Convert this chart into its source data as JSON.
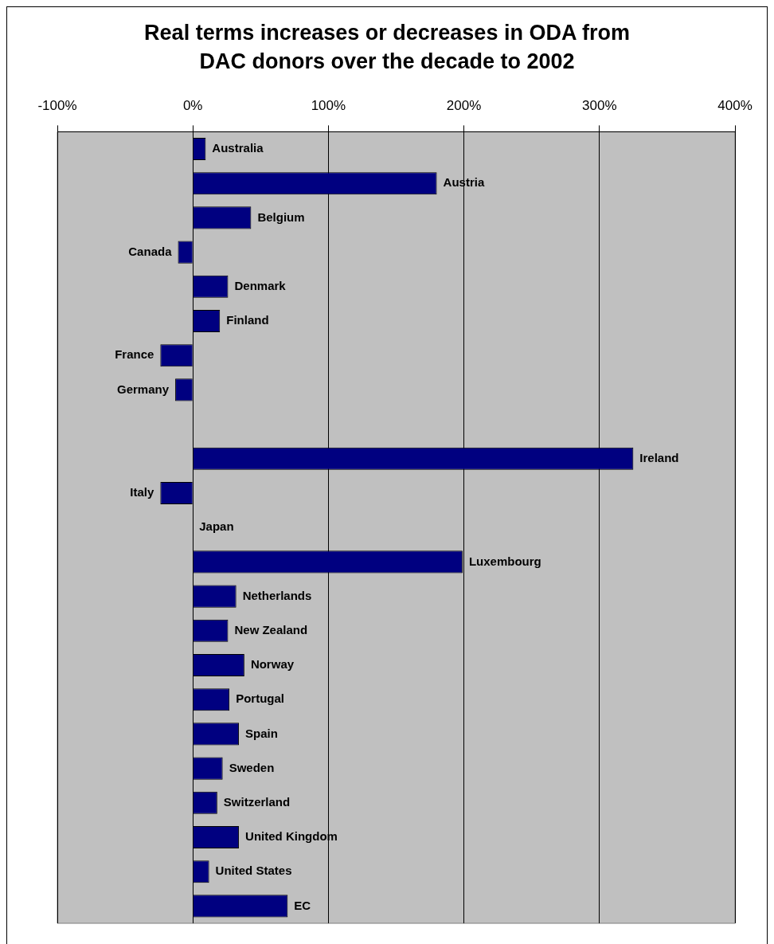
{
  "chart_data": {
    "type": "bar",
    "orientation": "horizontal",
    "title": "Real terms increases or decreases in ODA from DAC donors over the decade to 2002",
    "categories": [
      "Australia",
      "Austria",
      "Belgium",
      "Canada",
      "Denmark",
      "Finland",
      "France",
      "Germany",
      null,
      "Ireland",
      "Italy",
      "Japan",
      "Luxembourg",
      "Netherlands",
      "New Zealand",
      "Norway",
      "Portugal",
      "Spain",
      "Sweden",
      "Switzerland",
      "United Kingdom",
      "United States",
      "EC"
    ],
    "values": [
      9.5,
      180,
      43,
      -11,
      26,
      20,
      -24,
      -13,
      null,
      325,
      -24,
      0,
      199,
      32,
      26,
      38,
      27,
      34,
      22,
      18,
      34,
      12,
      70
    ],
    "color": "#000080",
    "xlim": [
      -100,
      400
    ],
    "xticks": [
      {
        "value": -100,
        "label": "-100%"
      },
      {
        "value": 0,
        "label": "0%"
      },
      {
        "value": 100,
        "label": "100%"
      },
      {
        "value": 200,
        "label": "200%"
      },
      {
        "value": 300,
        "label": "300%"
      },
      {
        "value": 400,
        "label": "400%"
      }
    ],
    "grid": "x",
    "tick_labels": "x",
    "legend": false
  }
}
